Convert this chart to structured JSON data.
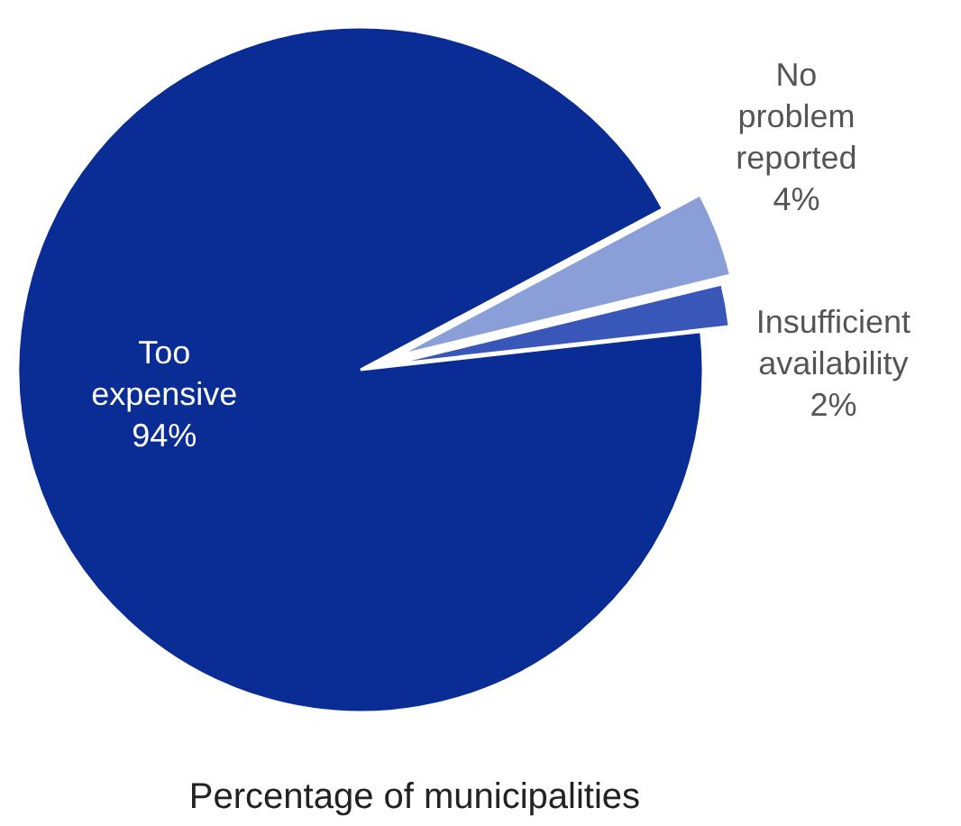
{
  "chart_data": {
    "type": "pie",
    "xlabel": "Percentage of municipalities",
    "categories": [
      "No problem reported",
      "Insufficient availability",
      "Too expensive"
    ],
    "values": [
      4,
      2,
      94
    ],
    "value_labels": [
      "4%",
      "2%",
      "94%"
    ],
    "colors": [
      "#8a9fd8",
      "#3857b8",
      "#0a2d95"
    ]
  }
}
